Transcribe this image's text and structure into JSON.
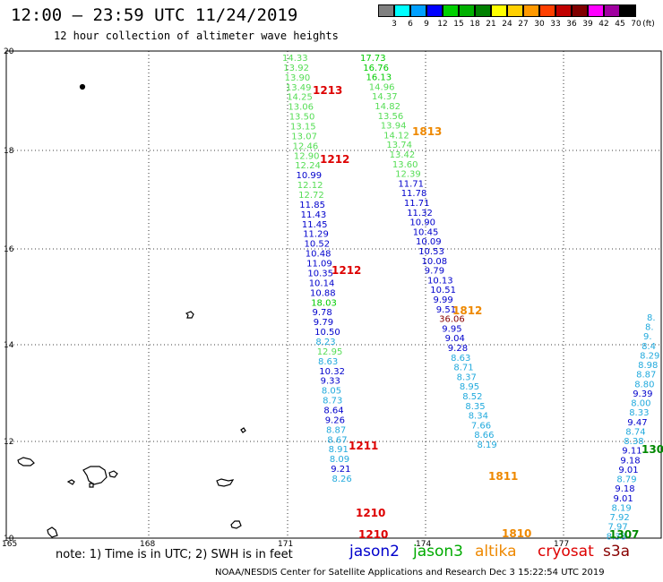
{
  "header": {
    "title": "12:00 – 23:59 UTC 11/24/2019",
    "subtitle": "12 hour collection of altimeter wave heights"
  },
  "legend": {
    "swatches": [
      {
        "label": "3",
        "color": "#808080"
      },
      {
        "label": "6",
        "color": "#00ffff"
      },
      {
        "label": "9",
        "color": "#00a0ff"
      },
      {
        "label": "12",
        "color": "#0000ff"
      },
      {
        "label": "15",
        "color": "#00d000"
      },
      {
        "label": "18",
        "color": "#00b000"
      },
      {
        "label": "21",
        "color": "#008000"
      },
      {
        "label": "24",
        "color": "#ffff00"
      },
      {
        "label": "27",
        "color": "#ffd000"
      },
      {
        "label": "30",
        "color": "#ff9900"
      },
      {
        "label": "33",
        "color": "#ff4000"
      },
      {
        "label": "36",
        "color": "#c00000"
      },
      {
        "label": "39",
        "color": "#800000"
      },
      {
        "label": "42",
        "color": "#ff00ff"
      },
      {
        "label": "45",
        "color": "#a000a0"
      },
      {
        "label": "70",
        "color": "#000000"
      }
    ],
    "unit": "(ft)"
  },
  "axes": {
    "lon_ticks": [
      "165",
      "168",
      "171",
      "174",
      "177"
    ],
    "lat_ticks": [
      "20",
      "18",
      "16",
      "14",
      "12",
      "10"
    ]
  },
  "colors": {
    "light_green": "#55dd55",
    "green": "#00cc00",
    "dark_green": "#008800",
    "blue": "#0000cc",
    "cyan": "#22aadd",
    "red": "#dd0000",
    "orange": "#ee8800",
    "dark_red": "#880000"
  },
  "tracks": [
    {
      "id": "t1",
      "anchor_x": 315,
      "slope": 0.118,
      "start_y": 64,
      "step": 10.93,
      "values": [
        [
          "14.33",
          "light_green"
        ],
        [
          "13.92",
          "light_green"
        ],
        [
          "13.90",
          "light_green"
        ],
        [
          "13.49",
          "light_green"
        ],
        [
          "14.25",
          "light_green"
        ],
        [
          "13.06",
          "light_green"
        ],
        [
          "13.50",
          "light_green"
        ],
        [
          "13.15",
          "light_green"
        ],
        [
          "13.07",
          "light_green"
        ],
        [
          "12.46",
          "light_green"
        ],
        [
          "12.90",
          "light_green"
        ],
        [
          "12.24",
          "light_green"
        ],
        [
          "10.99",
          "blue"
        ],
        [
          "12.12",
          "light_green"
        ],
        [
          "12.72",
          "light_green"
        ],
        [
          "11.85",
          "blue"
        ],
        [
          "11.43",
          "blue"
        ],
        [
          "11.45",
          "blue"
        ],
        [
          "11.29",
          "blue"
        ],
        [
          "10.52",
          "blue"
        ],
        [
          "10.48",
          "blue"
        ],
        [
          "11.09",
          "blue"
        ],
        [
          "10.35",
          "blue"
        ],
        [
          "10.14",
          "blue"
        ],
        [
          "10.88",
          "blue"
        ],
        [
          "18.03",
          "green"
        ],
        [
          "9.78",
          "blue"
        ],
        [
          "9.79",
          "blue"
        ],
        [
          "10.50",
          "blue"
        ],
        [
          "8.23",
          "cyan"
        ],
        [
          "12.95",
          "light_green"
        ],
        [
          "8.63",
          "cyan"
        ],
        [
          "10.32",
          "blue"
        ],
        [
          "9.33",
          "blue"
        ],
        [
          "8.05",
          "cyan"
        ],
        [
          "8.73",
          "cyan"
        ],
        [
          "8.64",
          "blue"
        ],
        [
          "9.26",
          "blue"
        ],
        [
          "8.87",
          "cyan"
        ],
        [
          "8.67",
          "cyan"
        ],
        [
          "8.91",
          "cyan"
        ],
        [
          "8.09",
          "cyan"
        ],
        [
          "9.21",
          "blue"
        ],
        [
          "8.26",
          "cyan"
        ]
      ]
    },
    {
      "id": "t2",
      "anchor_x": 402,
      "slope": 0.302,
      "start_y": 64,
      "step": 10.8,
      "values": [
        [
          "17.73",
          "green"
        ],
        [
          "16.76",
          "green"
        ],
        [
          "16.13",
          "green"
        ],
        [
          "14.96",
          "light_green"
        ],
        [
          "14.37",
          "light_green"
        ],
        [
          "14.82",
          "light_green"
        ],
        [
          "13.56",
          "light_green"
        ],
        [
          "13.94",
          "light_green"
        ],
        [
          "14.12",
          "light_green"
        ],
        [
          "13.74",
          "light_green"
        ],
        [
          "13.42",
          "light_green"
        ],
        [
          "13.60",
          "light_green"
        ],
        [
          "12.39",
          "light_green"
        ],
        [
          "11.71",
          "blue"
        ],
        [
          "11.78",
          "blue"
        ],
        [
          "11.71",
          "blue"
        ],
        [
          "11.32",
          "blue"
        ],
        [
          "10.90",
          "blue"
        ],
        [
          "10.45",
          "blue"
        ],
        [
          "10.09",
          "blue"
        ],
        [
          "10.53",
          "blue"
        ],
        [
          "10.08",
          "blue"
        ],
        [
          "9.79",
          "blue"
        ],
        [
          "10.13",
          "blue"
        ],
        [
          "10.51",
          "blue"
        ],
        [
          "9.99",
          "blue"
        ],
        [
          "9.51",
          "blue"
        ],
        [
          "36.06",
          "dark_red"
        ],
        [
          "9.95",
          "blue"
        ],
        [
          "9.04",
          "blue"
        ],
        [
          "9.28",
          "blue"
        ],
        [
          "8.63",
          "cyan"
        ],
        [
          "8.71",
          "cyan"
        ],
        [
          "8.37",
          "cyan"
        ],
        [
          "8.95",
          "cyan"
        ],
        [
          "8.52",
          "cyan"
        ],
        [
          "8.35",
          "cyan"
        ],
        [
          "8.34",
          "cyan"
        ],
        [
          "7.66",
          "cyan"
        ],
        [
          "8.66",
          "cyan"
        ],
        [
          "8.19",
          "cyan"
        ]
      ]
    },
    {
      "id": "t3",
      "anchor_x": 722,
      "slope": -0.186,
      "start_y": 354,
      "step": 10.62,
      "values": [
        [
          "8.",
          "cyan"
        ],
        [
          "8.",
          "cyan"
        ],
        [
          "9.",
          "cyan"
        ],
        [
          "8.4",
          "cyan"
        ],
        [
          "8.29",
          "cyan"
        ],
        [
          "8.98",
          "cyan"
        ],
        [
          "8.87",
          "cyan"
        ],
        [
          "8.80",
          "cyan"
        ],
        [
          "9.39",
          "blue"
        ],
        [
          "8.00",
          "cyan"
        ],
        [
          "8.33",
          "cyan"
        ],
        [
          "9.47",
          "blue"
        ],
        [
          "8.74",
          "cyan"
        ],
        [
          "8.38",
          "cyan"
        ],
        [
          "9.11",
          "blue"
        ],
        [
          "9.18",
          "blue"
        ],
        [
          "9.01",
          "blue"
        ],
        [
          "8.79",
          "cyan"
        ],
        [
          "9.18",
          "blue"
        ],
        [
          "9.01",
          "blue"
        ],
        [
          "8.19",
          "cyan"
        ],
        [
          "7.92",
          "cyan"
        ],
        [
          "7.97",
          "cyan"
        ],
        [
          "8.38",
          "cyan"
        ]
      ]
    }
  ],
  "time_labels": [
    {
      "text": "1213",
      "color": "red"
    },
    {
      "text": "1212",
      "color": "red"
    },
    {
      "text": "1212",
      "color": "red"
    },
    {
      "text": "1211",
      "color": "red"
    },
    {
      "text": "1210",
      "color": "red"
    },
    {
      "text": "1210",
      "color": "red"
    },
    {
      "text": "1813",
      "color": "orange"
    },
    {
      "text": "1812",
      "color": "orange"
    },
    {
      "text": "1811",
      "color": "orange"
    },
    {
      "text": "1810",
      "color": "orange"
    },
    {
      "text": "1307",
      "color": "dark_green"
    },
    {
      "text": "130",
      "color": "dark_green"
    }
  ],
  "footer": {
    "note": "note: 1) Time is in UTC; 2) SWH is in feet",
    "satellites": [
      {
        "name": "jason2",
        "color": "#0000cc"
      },
      {
        "name": "jason3",
        "color": "#00aa00"
      },
      {
        "name": "altika",
        "color": "#ee8800"
      },
      {
        "name": "cryosat",
        "color": "#dd0000"
      },
      {
        "name": "s3a",
        "color": "#880000"
      }
    ],
    "credit": "NOAA/NESDIS Center for Satellite Applications and Research    Dec  3 15:22:54 UTC 2019"
  }
}
